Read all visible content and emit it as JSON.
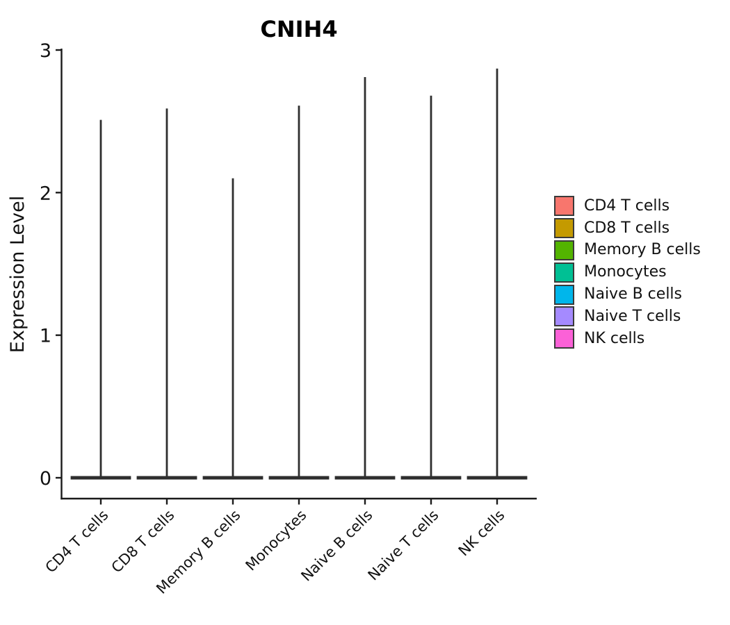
{
  "figure": {
    "background": "#ffffff"
  },
  "chart_data": {
    "type": "violin",
    "title": "CNIH4",
    "ylabel": "Expression Level",
    "xlabel": "",
    "categories": [
      "CD4 T cells",
      "CD8 T cells",
      "Memory B cells",
      "Monocytes",
      "Naive B cells",
      "Naive T cells",
      "NK cells"
    ],
    "series": [
      {
        "name": "CD4 T cells",
        "color": "#F8766D",
        "min": 0,
        "max": 2.51
      },
      {
        "name": "CD8 T cells",
        "color": "#C49A00",
        "min": 0,
        "max": 2.59
      },
      {
        "name": "Memory B cells",
        "color": "#53B400",
        "min": 0,
        "max": 2.1
      },
      {
        "name": "Monocytes",
        "color": "#00C094",
        "min": 0,
        "max": 2.61
      },
      {
        "name": "Naive B cells",
        "color": "#00B6EB",
        "min": 0,
        "max": 2.81
      },
      {
        "name": "Naive T cells",
        "color": "#A58AFF",
        "min": 0,
        "max": 2.68
      },
      {
        "name": "NK cells",
        "color": "#FB61D7",
        "min": 0,
        "max": 2.87
      }
    ],
    "y_ticks": [
      0,
      1,
      2,
      3
    ],
    "ylim": [
      0,
      3
    ],
    "grid": false,
    "legend_position": "right",
    "shape_note": "Each violin is collapsed to a flat horizontal bar at 0 with a thin vertical spike rising to the group's maximum expression value",
    "outline_color": "#2e2e2e",
    "axis_color": "#1a1a1a"
  },
  "legend": {
    "items": [
      {
        "label": "CD4 T cells",
        "color": "#F8766D"
      },
      {
        "label": "CD8 T cells",
        "color": "#C49A00"
      },
      {
        "label": "Memory B cells",
        "color": "#53B400"
      },
      {
        "label": "Monocytes",
        "color": "#00C094"
      },
      {
        "label": "Naive B cells",
        "color": "#00B6EB"
      },
      {
        "label": "Naive T cells",
        "color": "#A58AFF"
      },
      {
        "label": "NK cells",
        "color": "#FB61D7"
      }
    ],
    "swatch_border_color": "#3a3a3a"
  }
}
